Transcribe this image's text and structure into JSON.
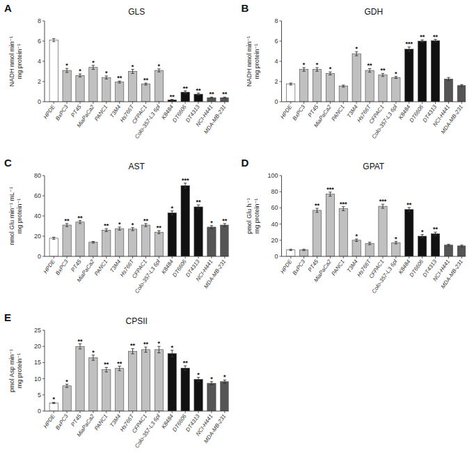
{
  "chart_data": [
    {
      "type": "bar",
      "panel_label": "A",
      "title": "GLS",
      "ylabel": "NADH nmol min⁻¹\nmg protein⁻¹",
      "ylim": [
        0,
        8
      ],
      "yticks": [
        0,
        2,
        4,
        6,
        8
      ],
      "grid": false,
      "categories": [
        "HPDE",
        "BxPC3",
        "PT45",
        "MiaPaCa2",
        "PANC1",
        "T3M4",
        "Hs766T",
        "CFPAC1",
        "Colo-357-L3 6pl",
        "K8484",
        "DT6606",
        "DT4313",
        "NCI-H441",
        "MDA-MB-231"
      ],
      "values": [
        6.1,
        3.1,
        2.6,
        3.4,
        2.4,
        1.95,
        3.0,
        1.75,
        3.1,
        0.18,
        0.95,
        0.75,
        0.4,
        0.4
      ],
      "errors": [
        0.15,
        0.2,
        0.15,
        0.2,
        0.15,
        0.1,
        0.2,
        0.1,
        0.15,
        0.05,
        0.12,
        0.1,
        0.06,
        0.06
      ],
      "colors": [
        "white",
        "#c0c0c0",
        "#c0c0c0",
        "#c0c0c0",
        "#c0c0c0",
        "#c0c0c0",
        "#c0c0c0",
        "#c0c0c0",
        "#c0c0c0",
        "#111111",
        "#111111",
        "#111111",
        "#555555",
        "#555555"
      ],
      "annotations": [
        null,
        "*",
        "*",
        "*",
        "*",
        "**",
        "*",
        "**",
        "*",
        "**",
        "**",
        "**",
        "**",
        "**"
      ]
    },
    {
      "type": "bar",
      "panel_label": "B",
      "title": "GDH",
      "ylabel": "NADH nmol min⁻¹\nmg protein⁻¹",
      "ylim": [
        0,
        8
      ],
      "yticks": [
        0,
        2,
        4,
        6,
        8
      ],
      "grid": false,
      "categories": [
        "HPDE",
        "BxPC3",
        "PT45",
        "MiaPaCa2",
        "PANC1",
        "T3M4",
        "Hs766T",
        "CFPAC1",
        "Colo-357-L3 6pl",
        "K8484",
        "DT6606",
        "DT4313",
        "NCI-H441",
        "MDA-MB-231"
      ],
      "values": [
        1.75,
        3.2,
        3.2,
        2.8,
        1.55,
        4.75,
        3.1,
        2.65,
        2.4,
        5.2,
        6.0,
        6.05,
        2.25,
        1.6
      ],
      "errors": [
        0.1,
        0.18,
        0.18,
        0.15,
        0.1,
        0.2,
        0.18,
        0.15,
        0.1,
        0.22,
        0.12,
        0.12,
        0.15,
        0.1
      ],
      "colors": [
        "white",
        "#c0c0c0",
        "#c0c0c0",
        "#c0c0c0",
        "#c0c0c0",
        "#c0c0c0",
        "#c0c0c0",
        "#c0c0c0",
        "#c0c0c0",
        "#111111",
        "#111111",
        "#111111",
        "#555555",
        "#555555"
      ],
      "annotations": [
        null,
        "*",
        "*",
        "*",
        null,
        "*",
        "**",
        "**",
        "*",
        "***",
        "**",
        "**",
        null,
        null
      ]
    },
    {
      "type": "bar",
      "panel_label": "C",
      "title": "AST",
      "ylabel": "nmol Glu min⁻¹ mL⁻¹\nmg protein⁻¹",
      "ylim": [
        0,
        80
      ],
      "yticks": [
        0,
        20,
        40,
        60,
        80
      ],
      "grid": false,
      "categories": [
        "HPDE",
        "BxPC3",
        "PT45",
        "MiaPaCa2",
        "PANC1",
        "T3M4",
        "Hs766T",
        "CFPAC1",
        "Colo-357-L3 6pl",
        "K8484",
        "DT6606",
        "DT4313",
        "NCI-H441",
        "MDA-MB-231"
      ],
      "values": [
        18,
        31,
        34,
        14,
        26,
        27.5,
        27,
        31,
        24,
        43,
        70,
        49,
        29,
        31
      ],
      "errors": [
        1.0,
        1.5,
        1.5,
        0.8,
        1.5,
        1.5,
        1.5,
        1.5,
        1.5,
        2.0,
        2.5,
        2.0,
        1.5,
        1.5
      ],
      "colors": [
        "white",
        "#c0c0c0",
        "#c0c0c0",
        "#c0c0c0",
        "#c0c0c0",
        "#c0c0c0",
        "#c0c0c0",
        "#c0c0c0",
        "#c0c0c0",
        "#111111",
        "#111111",
        "#111111",
        "#555555",
        "#555555"
      ],
      "annotations": [
        null,
        "**",
        "**",
        null,
        "**",
        "*",
        "*",
        "**",
        "**",
        "*",
        "***",
        "**",
        "*",
        "**"
      ]
    },
    {
      "type": "bar",
      "panel_label": "D",
      "title": "GPAT",
      "ylabel": "pmol Glu h⁻¹\nmg protein⁻¹",
      "ylim": [
        0,
        100
      ],
      "yticks": [
        0,
        20,
        40,
        60,
        80,
        100
      ],
      "grid": false,
      "categories": [
        "HPDE",
        "BxPC3",
        "PT45",
        "MiaPaCa2",
        "PANC1",
        "T3M4",
        "Hs766T",
        "CFPAC1",
        "Colo-357-L3 6pl",
        "K8484",
        "DT6606",
        "DT4313",
        "NCI-H441",
        "MDA-MB-231"
      ],
      "values": [
        8,
        8,
        57,
        77,
        59,
        20,
        16,
        62,
        17,
        58,
        25,
        28,
        14,
        13
      ],
      "errors": [
        0.8,
        0.8,
        2.5,
        2.5,
        2.5,
        1.5,
        1.5,
        2.5,
        1.5,
        2.5,
        2.0,
        2.0,
        1.0,
        1.0
      ],
      "colors": [
        "white",
        "#c0c0c0",
        "#c0c0c0",
        "#c0c0c0",
        "#c0c0c0",
        "#c0c0c0",
        "#c0c0c0",
        "#c0c0c0",
        "#c0c0c0",
        "#111111",
        "#111111",
        "#111111",
        "#555555",
        "#555555"
      ],
      "annotations": [
        null,
        null,
        "**",
        "***",
        "***",
        "*",
        null,
        "***",
        "*",
        "**",
        "*",
        "**",
        null,
        null
      ]
    },
    {
      "type": "bar",
      "panel_label": "E",
      "title": "CPSII",
      "ylabel": "pmol Asp min⁻¹\nmg protein⁻¹",
      "ylim": [
        0,
        25
      ],
      "yticks": [
        0,
        5,
        10,
        15,
        20,
        25
      ],
      "grid": false,
      "categories": [
        "HPDE",
        "BxPC3",
        "PT45",
        "MiaPaCa2",
        "PANC1",
        "T3M4",
        "Hs766T",
        "CFPAC1",
        "Colo-357-L3 6pl",
        "K8484",
        "DT6606",
        "DT4313",
        "NCI-H441",
        "MDA-MB-231"
      ],
      "values": [
        2.5,
        7.8,
        20.0,
        16.5,
        12.8,
        13.2,
        18.5,
        19.0,
        19.0,
        17.8,
        13.3,
        9.8,
        8.6,
        9.1
      ],
      "errors": [
        0.2,
        0.5,
        0.8,
        0.8,
        0.7,
        0.7,
        0.8,
        0.8,
        1.0,
        1.0,
        0.7,
        0.6,
        0.5,
        0.5
      ],
      "colors": [
        "white",
        "#c0c0c0",
        "#c0c0c0",
        "#c0c0c0",
        "#c0c0c0",
        "#c0c0c0",
        "#c0c0c0",
        "#c0c0c0",
        "#c0c0c0",
        "#111111",
        "#111111",
        "#111111",
        "#555555",
        "#555555"
      ],
      "annotations": [
        "*",
        "*",
        "**",
        "*",
        "**",
        "**",
        "**",
        "**",
        "*",
        "*",
        "**",
        "*",
        "*",
        "*"
      ]
    }
  ]
}
